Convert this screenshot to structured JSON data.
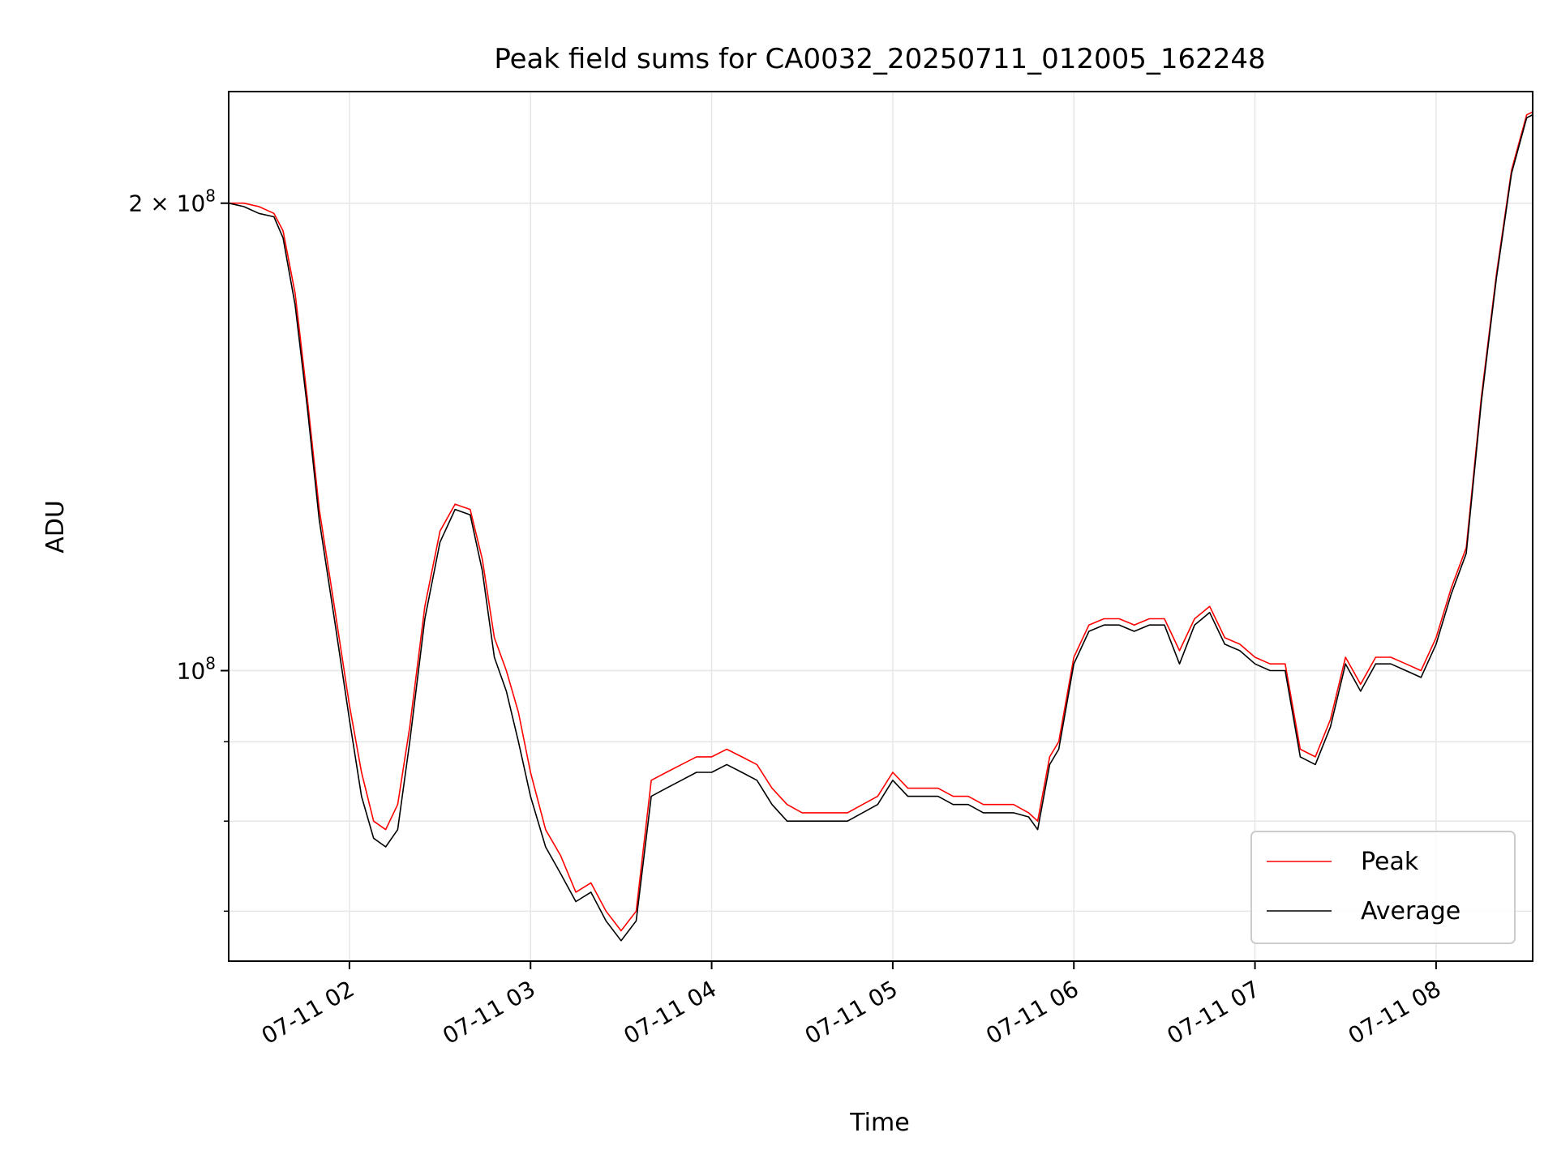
{
  "chart_data": {
    "type": "line",
    "title": "Peak field sums for CA0032_20250711_012005_162248",
    "xlabel": "Time",
    "ylabel": "ADU",
    "yscale": "log",
    "grid": true,
    "legend_position": "lower right",
    "x_ticks": [
      "07-11 02",
      "07-11 03",
      "07-11 04",
      "07-11 05",
      "07-11 06",
      "07-11 07",
      "07-11 08"
    ],
    "y_ticks": [
      {
        "value": 200000000,
        "label_base": "2 × 10",
        "label_exp": "8"
      },
      {
        "value": 100000000,
        "label_base": "10",
        "label_exp": "8"
      }
    ],
    "xlim": [
      "2025-07-11 01:20",
      "2025-07-11 08:32"
    ],
    "ylim": [
      65000000,
      236000000
    ],
    "series": [
      {
        "name": "Peak",
        "color": "#ff0000",
        "x": [
          "2025-07-11 01:20",
          "2025-07-11 01:25",
          "2025-07-11 01:30",
          "2025-07-11 01:35",
          "2025-07-11 01:38",
          "2025-07-11 01:42",
          "2025-07-11 01:46",
          "2025-07-11 01:50",
          "2025-07-11 01:55",
          "2025-07-11 02:00",
          "2025-07-11 02:04",
          "2025-07-11 02:08",
          "2025-07-11 02:12",
          "2025-07-11 02:16",
          "2025-07-11 02:20",
          "2025-07-11 02:25",
          "2025-07-11 02:30",
          "2025-07-11 02:35",
          "2025-07-11 02:40",
          "2025-07-11 02:44",
          "2025-07-11 02:48",
          "2025-07-11 02:52",
          "2025-07-11 02:56",
          "2025-07-11 03:00",
          "2025-07-11 03:05",
          "2025-07-11 03:10",
          "2025-07-11 03:15",
          "2025-07-11 03:20",
          "2025-07-11 03:25",
          "2025-07-11 03:30",
          "2025-07-11 03:35",
          "2025-07-11 03:40",
          "2025-07-11 03:45",
          "2025-07-11 03:50",
          "2025-07-11 03:55",
          "2025-07-11 04:00",
          "2025-07-11 04:05",
          "2025-07-11 04:10",
          "2025-07-11 04:15",
          "2025-07-11 04:20",
          "2025-07-11 04:25",
          "2025-07-11 04:30",
          "2025-07-11 04:35",
          "2025-07-11 04:40",
          "2025-07-11 04:45",
          "2025-07-11 04:50",
          "2025-07-11 04:55",
          "2025-07-11 05:00",
          "2025-07-11 05:05",
          "2025-07-11 05:10",
          "2025-07-11 05:15",
          "2025-07-11 05:20",
          "2025-07-11 05:25",
          "2025-07-11 05:30",
          "2025-07-11 05:35",
          "2025-07-11 05:40",
          "2025-07-11 05:45",
          "2025-07-11 05:48",
          "2025-07-11 05:52",
          "2025-07-11 05:55",
          "2025-07-11 06:00",
          "2025-07-11 06:05",
          "2025-07-11 06:10",
          "2025-07-11 06:15",
          "2025-07-11 06:20",
          "2025-07-11 06:25",
          "2025-07-11 06:30",
          "2025-07-11 06:35",
          "2025-07-11 06:40",
          "2025-07-11 06:45",
          "2025-07-11 06:50",
          "2025-07-11 06:55",
          "2025-07-11 07:00",
          "2025-07-11 07:05",
          "2025-07-11 07:10",
          "2025-07-11 07:15",
          "2025-07-11 07:20",
          "2025-07-11 07:25",
          "2025-07-11 07:30",
          "2025-07-11 07:35",
          "2025-07-11 07:40",
          "2025-07-11 07:45",
          "2025-07-11 07:50",
          "2025-07-11 07:55",
          "2025-07-11 08:00",
          "2025-07-11 08:05",
          "2025-07-11 08:10",
          "2025-07-11 08:15",
          "2025-07-11 08:20",
          "2025-07-11 08:25",
          "2025-07-11 08:30",
          "2025-07-11 08:32"
        ],
        "values": [
          200000000,
          200000000,
          199000000,
          197000000,
          192000000,
          175000000,
          150000000,
          127000000,
          110000000,
          95000000,
          86000000,
          80000000,
          79000000,
          82000000,
          92000000,
          110000000,
          123000000,
          128000000,
          127000000,
          118000000,
          105000000,
          100000000,
          94000000,
          86000000,
          79000000,
          76000000,
          72000000,
          73000000,
          70000000,
          68000000,
          70000000,
          85000000,
          86000000,
          87000000,
          88000000,
          88000000,
          89000000,
          88000000,
          87000000,
          84000000,
          82000000,
          81000000,
          81000000,
          81000000,
          81000000,
          82000000,
          83000000,
          86000000,
          84000000,
          84000000,
          84000000,
          83000000,
          83000000,
          82000000,
          82000000,
          82000000,
          81000000,
          80000000,
          88000000,
          90000000,
          102000000,
          107000000,
          108000000,
          108000000,
          107000000,
          108000000,
          108000000,
          103000000,
          108000000,
          110000000,
          105000000,
          104000000,
          102000000,
          101000000,
          101000000,
          89000000,
          88000000,
          93000000,
          102000000,
          98000000,
          102000000,
          102000000,
          101000000,
          100000000,
          105000000,
          113000000,
          120000000,
          150000000,
          180000000,
          210000000,
          228000000,
          229000000
        ]
      },
      {
        "name": "Average",
        "color": "#000000",
        "x": [
          "2025-07-11 01:20",
          "2025-07-11 01:25",
          "2025-07-11 01:30",
          "2025-07-11 01:35",
          "2025-07-11 01:38",
          "2025-07-11 01:42",
          "2025-07-11 01:46",
          "2025-07-11 01:50",
          "2025-07-11 01:55",
          "2025-07-11 02:00",
          "2025-07-11 02:04",
          "2025-07-11 02:08",
          "2025-07-11 02:12",
          "2025-07-11 02:16",
          "2025-07-11 02:20",
          "2025-07-11 02:25",
          "2025-07-11 02:30",
          "2025-07-11 02:35",
          "2025-07-11 02:40",
          "2025-07-11 02:44",
          "2025-07-11 02:48",
          "2025-07-11 02:52",
          "2025-07-11 02:56",
          "2025-07-11 03:00",
          "2025-07-11 03:05",
          "2025-07-11 03:10",
          "2025-07-11 03:15",
          "2025-07-11 03:20",
          "2025-07-11 03:25",
          "2025-07-11 03:30",
          "2025-07-11 03:35",
          "2025-07-11 03:40",
          "2025-07-11 03:45",
          "2025-07-11 03:50",
          "2025-07-11 03:55",
          "2025-07-11 04:00",
          "2025-07-11 04:05",
          "2025-07-11 04:10",
          "2025-07-11 04:15",
          "2025-07-11 04:20",
          "2025-07-11 04:25",
          "2025-07-11 04:30",
          "2025-07-11 04:35",
          "2025-07-11 04:40",
          "2025-07-11 04:45",
          "2025-07-11 04:50",
          "2025-07-11 04:55",
          "2025-07-11 05:00",
          "2025-07-11 05:05",
          "2025-07-11 05:10",
          "2025-07-11 05:15",
          "2025-07-11 05:20",
          "2025-07-11 05:25",
          "2025-07-11 05:30",
          "2025-07-11 05:35",
          "2025-07-11 05:40",
          "2025-07-11 05:45",
          "2025-07-11 05:48",
          "2025-07-11 05:52",
          "2025-07-11 05:55",
          "2025-07-11 06:00",
          "2025-07-11 06:05",
          "2025-07-11 06:10",
          "2025-07-11 06:15",
          "2025-07-11 06:20",
          "2025-07-11 06:25",
          "2025-07-11 06:30",
          "2025-07-11 06:35",
          "2025-07-11 06:40",
          "2025-07-11 06:45",
          "2025-07-11 06:50",
          "2025-07-11 06:55",
          "2025-07-11 07:00",
          "2025-07-11 07:05",
          "2025-07-11 07:10",
          "2025-07-11 07:15",
          "2025-07-11 07:20",
          "2025-07-11 07:25",
          "2025-07-11 07:30",
          "2025-07-11 07:35",
          "2025-07-11 07:40",
          "2025-07-11 07:45",
          "2025-07-11 07:50",
          "2025-07-11 07:55",
          "2025-07-11 08:00",
          "2025-07-11 08:05",
          "2025-07-11 08:10",
          "2025-07-11 08:15",
          "2025-07-11 08:20",
          "2025-07-11 08:25",
          "2025-07-11 08:30",
          "2025-07-11 08:32"
        ],
        "values": [
          200000000,
          199000000,
          197000000,
          196000000,
          190000000,
          172000000,
          148000000,
          125000000,
          108000000,
          93000000,
          83000000,
          78000000,
          77000000,
          79000000,
          90000000,
          108000000,
          121000000,
          127000000,
          126000000,
          116000000,
          102000000,
          97000000,
          90000000,
          83000000,
          77000000,
          74000000,
          71000000,
          72000000,
          69000000,
          67000000,
          69000000,
          83000000,
          84000000,
          85000000,
          86000000,
          86000000,
          87000000,
          86000000,
          85000000,
          82000000,
          80000000,
          80000000,
          80000000,
          80000000,
          80000000,
          81000000,
          82000000,
          85000000,
          83000000,
          83000000,
          83000000,
          82000000,
          82000000,
          81000000,
          81000000,
          81000000,
          80500000,
          79000000,
          87000000,
          89000000,
          101000000,
          106000000,
          107000000,
          107000000,
          106000000,
          107000000,
          107000000,
          101000000,
          107000000,
          109000000,
          104000000,
          103000000,
          101000000,
          100000000,
          100000000,
          88000000,
          87000000,
          92000000,
          101000000,
          97000000,
          101000000,
          101000000,
          100000000,
          99000000,
          104000000,
          112000000,
          119000000,
          149000000,
          179000000,
          209000000,
          227000000,
          228000000
        ]
      }
    ]
  }
}
